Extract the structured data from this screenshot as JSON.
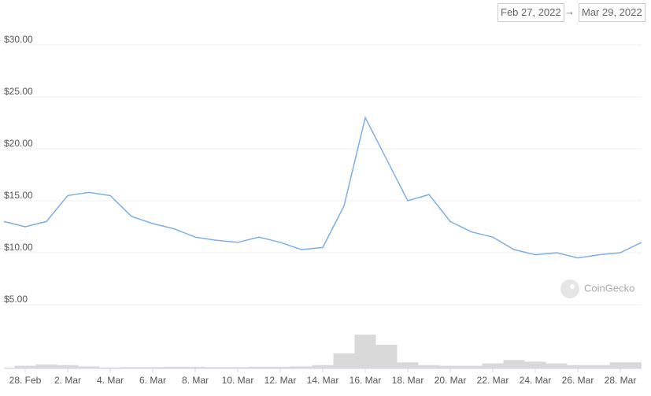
{
  "date_range": {
    "start": "Feb 27, 2022",
    "separator": "→",
    "end": "Mar 29, 2022"
  },
  "chart_data": {
    "type": "line",
    "x": [
      "2022-02-27",
      "2022-02-28",
      "2022-03-01",
      "2022-03-02",
      "2022-03-03",
      "2022-03-04",
      "2022-03-05",
      "2022-03-06",
      "2022-03-07",
      "2022-03-08",
      "2022-03-09",
      "2022-03-10",
      "2022-03-11",
      "2022-03-12",
      "2022-03-13",
      "2022-03-14",
      "2022-03-15",
      "2022-03-16",
      "2022-03-17",
      "2022-03-18",
      "2022-03-19",
      "2022-03-20",
      "2022-03-21",
      "2022-03-22",
      "2022-03-23",
      "2022-03-24",
      "2022-03-25",
      "2022-03-26",
      "2022-03-27",
      "2022-03-28",
      "2022-03-29"
    ],
    "series": [
      {
        "color": "#7cb0e4",
        "values": [
          13.0,
          12.5,
          13.0,
          15.5,
          15.8,
          15.5,
          13.5,
          12.8,
          12.3,
          11.5,
          11.2,
          11.0,
          11.5,
          11.0,
          10.3,
          10.5,
          14.5,
          23.0,
          19.0,
          15.0,
          15.6,
          13.0,
          12.0,
          11.5,
          10.3,
          9.8,
          10.0,
          9.5,
          9.8,
          10.0,
          11.0
        ]
      }
    ],
    "volume": {
      "color": "#d9d9d9",
      "ylim": [
        0,
        100
      ],
      "values": [
        2,
        8,
        12,
        10,
        6,
        3,
        4,
        4,
        5,
        5,
        4,
        4,
        5,
        5,
        6,
        10,
        45,
        100,
        70,
        18,
        10,
        8,
        8,
        15,
        25,
        20,
        15,
        10,
        10,
        18,
        18
      ]
    },
    "xlim": [
      "2022-02-27",
      "2022-03-29"
    ],
    "xticks": [
      {
        "value": "2022-02-28",
        "label": "28. Feb"
      },
      {
        "value": "2022-03-02",
        "label": "2. Mar"
      },
      {
        "value": "2022-03-04",
        "label": "4. Mar"
      },
      {
        "value": "2022-03-06",
        "label": "6. Mar"
      },
      {
        "value": "2022-03-08",
        "label": "8. Mar"
      },
      {
        "value": "2022-03-10",
        "label": "10. Mar"
      },
      {
        "value": "2022-03-12",
        "label": "12. Mar"
      },
      {
        "value": "2022-03-14",
        "label": "14. Mar"
      },
      {
        "value": "2022-03-16",
        "label": "16. Mar"
      },
      {
        "value": "2022-03-18",
        "label": "18. Mar"
      },
      {
        "value": "2022-03-20",
        "label": "20. Mar"
      },
      {
        "value": "2022-03-22",
        "label": "22. Mar"
      },
      {
        "value": "2022-03-24",
        "label": "24. Mar"
      },
      {
        "value": "2022-03-26",
        "label": "26. Mar"
      },
      {
        "value": "2022-03-28",
        "label": "28. Mar"
      }
    ],
    "ylim": [
      5,
      30
    ],
    "yticks": [
      {
        "value": 5,
        "label": "$5.00"
      },
      {
        "value": 10,
        "label": "$10.00"
      },
      {
        "value": 15,
        "label": "$15.00"
      },
      {
        "value": 20,
        "label": "$20.00"
      },
      {
        "value": 25,
        "label": "$25.00"
      },
      {
        "value": 30,
        "label": "$30.00"
      }
    ],
    "grid": true,
    "watermark": "CoinGecko"
  }
}
